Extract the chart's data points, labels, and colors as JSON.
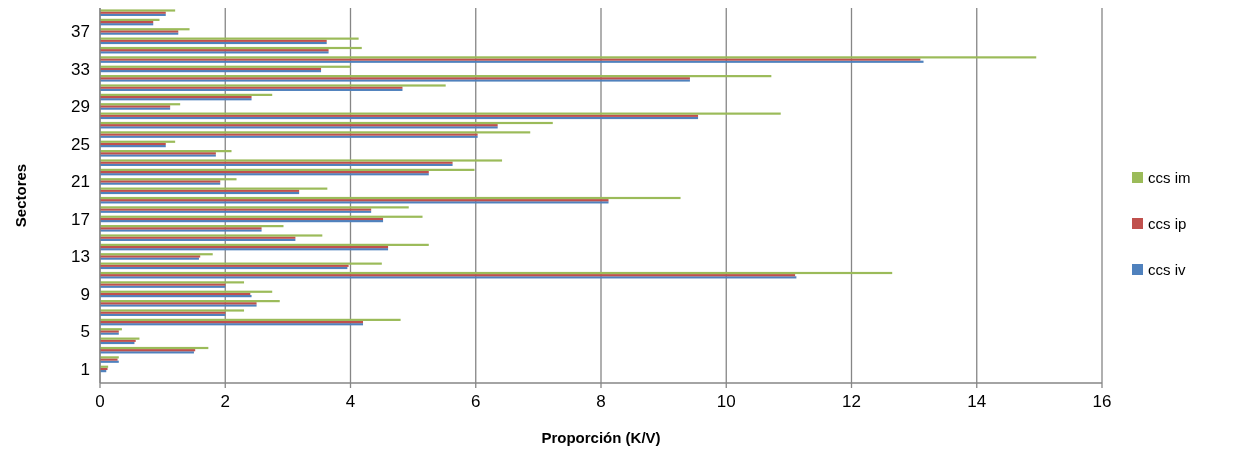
{
  "chart_data": {
    "type": "bar",
    "orientation": "horizontal",
    "xlabel": "Proporción (K/V)",
    "ylabel": "Sectores",
    "categories": [
      null,
      null,
      "37",
      null,
      null,
      null,
      "33",
      null,
      null,
      null,
      "29",
      null,
      null,
      null,
      "25",
      null,
      null,
      null,
      "21",
      null,
      null,
      null,
      "17",
      null,
      null,
      null,
      "13",
      null,
      null,
      null,
      "9",
      null,
      null,
      null,
      "5",
      null,
      null,
      null,
      "1",
      null
    ],
    "series": [
      {
        "name": "ccs iv",
        "color": "#4f81bd",
        "values": [
          1.05,
          0.85,
          1.25,
          3.62,
          3.65,
          13.15,
          3.53,
          9.42,
          4.83,
          2.42,
          1.12,
          9.55,
          6.35,
          6.03,
          1.05,
          1.85,
          5.63,
          5.25,
          1.92,
          3.18,
          8.12,
          4.33,
          4.52,
          2.58,
          3.12,
          4.6,
          1.58,
          3.95,
          11.12,
          2.0,
          2.42,
          2.5,
          2.0,
          4.2,
          0.3,
          0.55,
          1.5,
          0.3,
          0.1,
          null
        ]
      },
      {
        "name": "ccs ip",
        "color": "#c0504d",
        "values": [
          1.05,
          0.85,
          1.25,
          3.62,
          3.65,
          13.1,
          3.53,
          9.42,
          4.83,
          2.42,
          1.12,
          9.55,
          6.35,
          6.03,
          1.05,
          1.85,
          5.63,
          5.25,
          1.92,
          3.18,
          8.12,
          4.33,
          4.52,
          2.58,
          3.12,
          4.6,
          1.6,
          3.97,
          11.1,
          2.0,
          2.4,
          2.5,
          2.0,
          4.2,
          0.3,
          0.57,
          1.52,
          0.28,
          0.12,
          null
        ]
      },
      {
        "name": "ccs im",
        "color": "#9bbb59",
        "values": [
          1.2,
          0.95,
          1.43,
          4.13,
          4.18,
          14.95,
          4.0,
          10.72,
          5.52,
          2.75,
          1.28,
          10.87,
          7.23,
          6.87,
          1.2,
          2.1,
          6.42,
          5.98,
          2.18,
          3.63,
          9.27,
          4.93,
          5.15,
          2.93,
          3.55,
          5.25,
          1.8,
          4.5,
          12.65,
          2.3,
          2.75,
          2.87,
          2.3,
          4.8,
          0.35,
          0.63,
          1.73,
          0.3,
          0.13,
          null
        ]
      }
    ],
    "xlim": [
      0,
      16
    ],
    "xticks": [
      0,
      2,
      4,
      6,
      8,
      10,
      12,
      14,
      16
    ],
    "grid": "x",
    "legend": "right"
  }
}
